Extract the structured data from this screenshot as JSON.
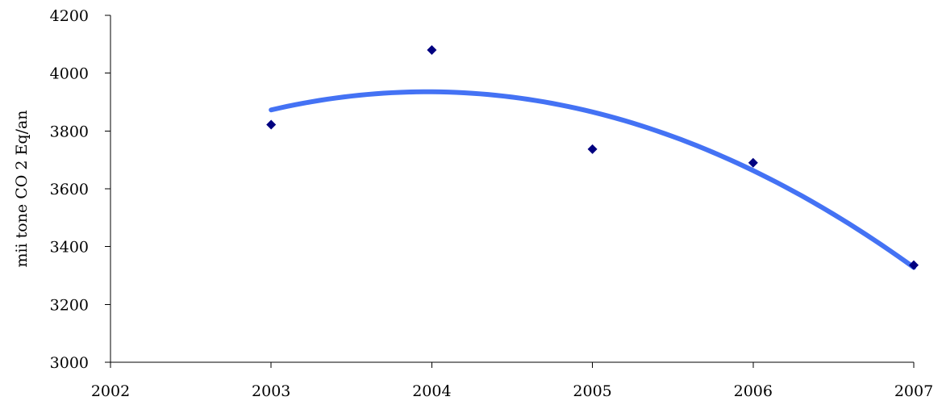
{
  "chart_data": {
    "type": "scatter",
    "title": "",
    "xlabel": "",
    "ylabel": "mii tone CO 2 Eq/an",
    "xlim": [
      2002,
      2007
    ],
    "ylim": [
      3000,
      4200
    ],
    "xticks": [
      2002,
      2003,
      2004,
      2005,
      2006,
      2007
    ],
    "yticks": [
      3000,
      3200,
      3400,
      3600,
      3800,
      4000,
      4200
    ],
    "grid": false,
    "legend": "none",
    "series": [
      {
        "x": [
          2003,
          2004,
          2005,
          2006,
          2007
        ],
        "y": [
          3822,
          4080,
          3737,
          3690,
          3336
        ],
        "marker": "diamond",
        "color": "#000080"
      }
    ],
    "trendline": {
      "type": "polynomial",
      "order": 2,
      "x_range": [
        2003,
        2007
      ],
      "color": "#4472F4"
    }
  }
}
